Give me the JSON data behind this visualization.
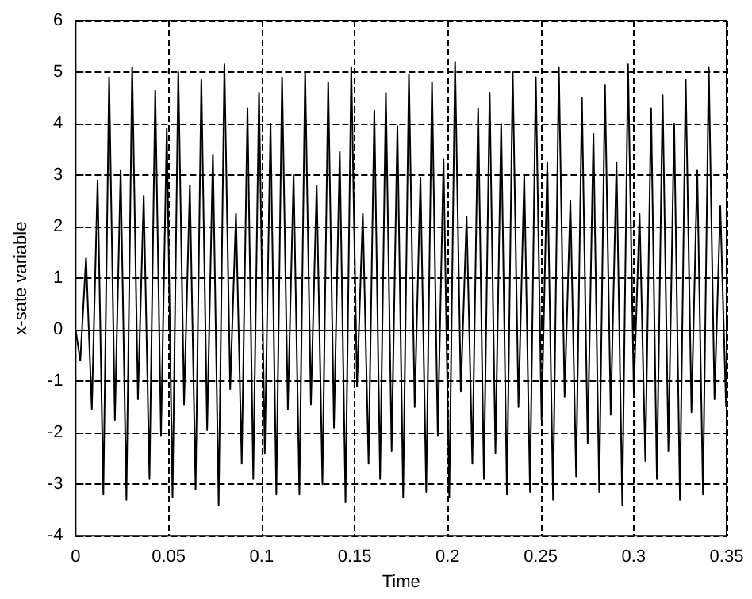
{
  "chart_data": {
    "type": "line",
    "xlabel": "Time",
    "ylabel": "x-sate variable",
    "color": "#000000",
    "marker": "none",
    "line_style": "solid",
    "grid": true,
    "xlim": [
      0,
      0.35
    ],
    "xticks": [
      0,
      0.05,
      0.1,
      0.15,
      0.2,
      0.25,
      0.3,
      0.35
    ],
    "ylim": [
      -4,
      6
    ],
    "yticks": [
      -4,
      -3,
      -2,
      -1,
      0,
      1,
      2,
      3,
      4,
      5,
      6
    ],
    "x": [
      0,
      0.0025,
      0.0056,
      0.0087,
      0.0118,
      0.0149,
      0.018,
      0.0211,
      0.0242,
      0.0273,
      0.0304,
      0.0335,
      0.0366,
      0.0397,
      0.0428,
      0.0459,
      0.049,
      0.0521,
      0.0552,
      0.0583,
      0.0614,
      0.0645,
      0.0676,
      0.0707,
      0.0738,
      0.0769,
      0.08,
      0.0831,
      0.0862,
      0.0893,
      0.0924,
      0.0955,
      0.0986,
      0.1017,
      0.1048,
      0.1079,
      0.111,
      0.1141,
      0.1172,
      0.1203,
      0.1234,
      0.1265,
      0.1296,
      0.1327,
      0.1358,
      0.1389,
      0.142,
      0.1451,
      0.1482,
      0.1513,
      0.1544,
      0.1575,
      0.1606,
      0.1637,
      0.1668,
      0.1699,
      0.173,
      0.1761,
      0.1792,
      0.1823,
      0.1854,
      0.1885,
      0.1916,
      0.1947,
      0.1978,
      0.2009,
      0.204,
      0.2071,
      0.2102,
      0.2133,
      0.2164,
      0.2195,
      0.2226,
      0.2257,
      0.2288,
      0.2319,
      0.235,
      0.2381,
      0.2412,
      0.2443,
      0.2474,
      0.2505,
      0.2536,
      0.2567,
      0.2598,
      0.2629,
      0.266,
      0.2691,
      0.2722,
      0.2753,
      0.2784,
      0.2815,
      0.2846,
      0.2877,
      0.2908,
      0.2939,
      0.297,
      0.3001,
      0.3032,
      0.3063,
      0.3094,
      0.3125,
      0.3156,
      0.3187,
      0.3218,
      0.3249,
      0.328,
      0.3311,
      0.3342,
      0.3373,
      0.3404,
      0.3435,
      0.3466,
      0.3497
    ],
    "values": [
      0,
      -0.6,
      1.4,
      -1.55,
      2.9,
      -3.2,
      4.9,
      -1.75,
      3.1,
      -3.3,
      5.1,
      -1.35,
      2.6,
      -2.9,
      4.65,
      -2.05,
      3.9,
      -3.25,
      5.0,
      -1.45,
      2.8,
      -3.1,
      4.85,
      -1.95,
      3.4,
      -3.4,
      5.15,
      -1.15,
      2.25,
      -2.6,
      4.3,
      -2.9,
      4.6,
      -2.4,
      4.0,
      -3.2,
      4.9,
      -1.55,
      3.0,
      -3.2,
      5.0,
      -1.45,
      2.8,
      -3.0,
      4.8,
      -1.9,
      3.45,
      -3.35,
      5.1,
      -1.1,
      2.25,
      -2.6,
      4.25,
      -2.9,
      4.6,
      -2.35,
      3.95,
      -3.25,
      4.95,
      -1.5,
      2.95,
      -3.15,
      4.8,
      -2.05,
      3.3,
      -3.25,
      5.2,
      -1.2,
      2.2,
      -2.6,
      4.3,
      -2.9,
      4.6,
      -2.4,
      4.0,
      -3.2,
      5.0,
      -1.5,
      3.0,
      -3.15,
      4.9,
      -1.75,
      3.25,
      -3.3,
      5.1,
      -1.3,
      2.5,
      -2.85,
      4.5,
      -2.2,
      3.8,
      -3.15,
      4.75,
      -1.65,
      3.25,
      -3.4,
      5.15,
      -1.2,
      2.25,
      -2.55,
      4.3,
      -2.9,
      4.55,
      -2.35,
      4.0,
      -3.3,
      4.85,
      -1.6,
      3.1,
      -3.2,
      5.1,
      -1.35,
      2.4,
      -1.5
    ]
  }
}
